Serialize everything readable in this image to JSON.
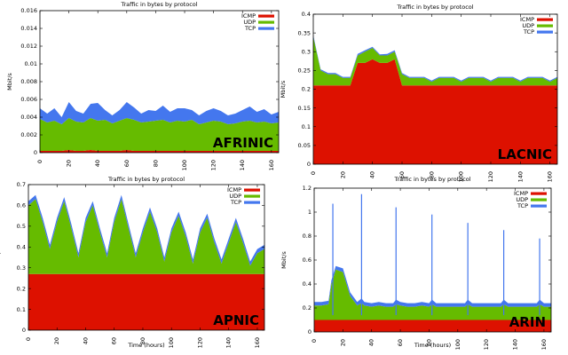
{
  "colors": {
    "icmp": "#dd1100",
    "udp": "#66bb00",
    "tcp": "#4477ee",
    "frame": "#000000"
  },
  "chart_data": [
    {
      "type": "area",
      "title": "Traffic in bytes by protocol",
      "region": "AFRINIC",
      "ylabel": "Mbit/s",
      "xlabel": "",
      "ylim": [
        0,
        0.016
      ],
      "yticks": [
        "0",
        "0.002",
        "0.004",
        "0.006",
        "0.008",
        "0.01",
        "0.012",
        "0.014",
        "0.016"
      ],
      "ytick_values": [
        0,
        0.002,
        0.004,
        0.006,
        0.008,
        0.01,
        0.012,
        0.014,
        0.016
      ],
      "xlim": [
        0,
        165
      ],
      "xticks": [
        "0",
        "20",
        "40",
        "60",
        "80",
        "100",
        "120",
        "140",
        "160"
      ],
      "xtick_values": [
        0,
        20,
        40,
        60,
        80,
        100,
        120,
        140,
        160
      ],
      "legend": [
        "ICMP",
        "UDP",
        "TCP"
      ],
      "legend_position": "top-right",
      "x": [
        0,
        5,
        10,
        15,
        20,
        25,
        30,
        35,
        40,
        45,
        50,
        55,
        60,
        65,
        70,
        75,
        80,
        85,
        90,
        95,
        100,
        105,
        110,
        115,
        120,
        125,
        130,
        135,
        140,
        145,
        150,
        155,
        160,
        165
      ],
      "series": [
        {
          "name": "ICMP",
          "values": [
            0.0002,
            0.0002,
            0.0002,
            0.0002,
            0.0003,
            0.0002,
            0.0002,
            0.0003,
            0.0002,
            0.0002,
            0.0002,
            0.0002,
            0.0003,
            0.0002,
            0.0002,
            0.0002,
            0.0002,
            0.0002,
            0.0002,
            0.0002,
            0.0002,
            0.0002,
            0.0002,
            0.0002,
            0.0002,
            0.0002,
            0.0002,
            0.0002,
            0.0002,
            0.0002,
            0.0002,
            0.0002,
            0.0002,
            0.0002
          ]
        },
        {
          "name": "UDP",
          "values": [
            0.0036,
            0.0032,
            0.0034,
            0.003,
            0.0036,
            0.0033,
            0.0032,
            0.0036,
            0.0034,
            0.0035,
            0.0031,
            0.0034,
            0.0036,
            0.0035,
            0.0032,
            0.0033,
            0.0034,
            0.0035,
            0.0032,
            0.0034,
            0.0033,
            0.0035,
            0.003,
            0.0032,
            0.0034,
            0.0033,
            0.003,
            0.0031,
            0.0033,
            0.0034,
            0.0032,
            0.0033,
            0.0031,
            0.0032
          ]
        },
        {
          "name": "TCP",
          "values": [
            0.0012,
            0.001,
            0.0014,
            0.0008,
            0.0018,
            0.0012,
            0.001,
            0.0016,
            0.002,
            0.0011,
            0.0009,
            0.0012,
            0.0018,
            0.0014,
            0.001,
            0.0013,
            0.0011,
            0.0016,
            0.0012,
            0.0014,
            0.0015,
            0.0011,
            0.001,
            0.0013,
            0.0014,
            0.0012,
            0.001,
            0.0011,
            0.0013,
            0.0016,
            0.0012,
            0.0014,
            0.001,
            0.0012
          ]
        }
      ]
    },
    {
      "type": "area",
      "title": "Traffic in bytes by protocol",
      "region": "LACNIC",
      "ylabel": "Mbit/s",
      "xlabel": "",
      "ylim": [
        0,
        0.4
      ],
      "yticks": [
        "0",
        "0.05",
        "0.1",
        "0.15",
        "0.2",
        "0.25",
        "0.3",
        "0.35",
        "0.4"
      ],
      "ytick_values": [
        0,
        0.05,
        0.1,
        0.15,
        0.2,
        0.25,
        0.3,
        0.35,
        0.4
      ],
      "xlim": [
        0,
        165
      ],
      "xticks": [
        "0",
        "20",
        "40",
        "60",
        "80",
        "100",
        "120",
        "140",
        "160"
      ],
      "xtick_values": [
        0,
        20,
        40,
        60,
        80,
        100,
        120,
        140,
        160
      ],
      "legend": [
        "ICMP",
        "UDP",
        "TCP"
      ],
      "legend_position": "top-right",
      "x": [
        0,
        5,
        10,
        15,
        20,
        25,
        30,
        35,
        40,
        45,
        50,
        55,
        60,
        65,
        70,
        75,
        80,
        85,
        90,
        95,
        100,
        105,
        110,
        115,
        120,
        125,
        130,
        135,
        140,
        145,
        150,
        155,
        160,
        165
      ],
      "series": [
        {
          "name": "ICMP",
          "values": [
            0.21,
            0.21,
            0.21,
            0.21,
            0.21,
            0.21,
            0.27,
            0.27,
            0.28,
            0.27,
            0.27,
            0.28,
            0.21,
            0.21,
            0.21,
            0.21,
            0.21,
            0.21,
            0.21,
            0.21,
            0.21,
            0.21,
            0.21,
            0.21,
            0.21,
            0.21,
            0.21,
            0.21,
            0.21,
            0.21,
            0.21,
            0.21,
            0.21,
            0.21
          ]
        },
        {
          "name": "UDP",
          "values": [
            0.13,
            0.04,
            0.03,
            0.03,
            0.02,
            0.02,
            0.02,
            0.03,
            0.03,
            0.02,
            0.02,
            0.02,
            0.03,
            0.02,
            0.02,
            0.02,
            0.01,
            0.02,
            0.02,
            0.02,
            0.01,
            0.02,
            0.02,
            0.02,
            0.01,
            0.02,
            0.02,
            0.02,
            0.01,
            0.02,
            0.02,
            0.02,
            0.01,
            0.02
          ]
        },
        {
          "name": "TCP",
          "values": [
            0.004,
            0.003,
            0.003,
            0.003,
            0.003,
            0.003,
            0.004,
            0.004,
            0.003,
            0.003,
            0.004,
            0.004,
            0.003,
            0.003,
            0.003,
            0.003,
            0.003,
            0.003,
            0.003,
            0.003,
            0.003,
            0.003,
            0.003,
            0.003,
            0.003,
            0.003,
            0.003,
            0.003,
            0.003,
            0.003,
            0.003,
            0.003,
            0.003,
            0.003
          ]
        }
      ]
    },
    {
      "type": "area",
      "title": "Traffic in bytes by protocol",
      "region": "APNIC",
      "ylabel": "Mbit/s",
      "xlabel": "Time (hours)",
      "ylim": [
        0,
        0.7
      ],
      "yticks": [
        "0",
        "0.1",
        "0.2",
        "0.3",
        "0.4",
        "0.5",
        "0.6",
        "0.7"
      ],
      "ytick_values": [
        0,
        0.1,
        0.2,
        0.3,
        0.4,
        0.5,
        0.6,
        0.7
      ],
      "xlim": [
        0,
        165
      ],
      "xticks": [
        "0",
        "20",
        "40",
        "60",
        "80",
        "100",
        "120",
        "140",
        "160"
      ],
      "xtick_values": [
        0,
        20,
        40,
        60,
        80,
        100,
        120,
        140,
        160
      ],
      "legend": [
        "ICMP",
        "UDP",
        "TCP"
      ],
      "legend_position": "top-right",
      "x": [
        0,
        5,
        10,
        15,
        20,
        25,
        30,
        35,
        40,
        45,
        50,
        55,
        60,
        65,
        70,
        75,
        80,
        85,
        90,
        95,
        100,
        105,
        110,
        115,
        120,
        125,
        130,
        135,
        140,
        145,
        150,
        155,
        160,
        165
      ],
      "series": [
        {
          "name": "ICMP",
          "values": [
            0.27,
            0.27,
            0.27,
            0.27,
            0.27,
            0.27,
            0.27,
            0.27,
            0.27,
            0.27,
            0.27,
            0.27,
            0.27,
            0.27,
            0.27,
            0.27,
            0.27,
            0.27,
            0.27,
            0.27,
            0.27,
            0.27,
            0.27,
            0.27,
            0.27,
            0.27,
            0.27,
            0.27,
            0.27,
            0.27,
            0.27,
            0.27,
            0.27,
            0.27
          ]
        },
        {
          "name": "UDP",
          "values": [
            0.33,
            0.36,
            0.25,
            0.12,
            0.25,
            0.35,
            0.22,
            0.08,
            0.25,
            0.33,
            0.2,
            0.08,
            0.25,
            0.36,
            0.22,
            0.08,
            0.2,
            0.3,
            0.2,
            0.06,
            0.2,
            0.28,
            0.18,
            0.05,
            0.2,
            0.27,
            0.15,
            0.05,
            0.15,
            0.25,
            0.15,
            0.04,
            0.1,
            0.12
          ]
        },
        {
          "name": "TCP",
          "values": [
            0.02,
            0.02,
            0.02,
            0.02,
            0.02,
            0.02,
            0.02,
            0.02,
            0.02,
            0.02,
            0.02,
            0.02,
            0.02,
            0.02,
            0.02,
            0.02,
            0.02,
            0.02,
            0.02,
            0.02,
            0.02,
            0.02,
            0.02,
            0.02,
            0.02,
            0.02,
            0.02,
            0.02,
            0.02,
            0.02,
            0.02,
            0.02,
            0.02,
            0.02
          ]
        }
      ]
    },
    {
      "type": "area",
      "title": "Traffic in bytes by protocol",
      "region": "ARIN",
      "ylabel": "Mbit/s",
      "xlabel": "Time (hours)",
      "ylim": [
        0,
        1.2
      ],
      "yticks": [
        "0",
        "0.2",
        "0.4",
        "0.6",
        "0.8",
        "1",
        "1.2"
      ],
      "ytick_values": [
        0,
        0.2,
        0.4,
        0.6,
        0.8,
        1,
        1.2
      ],
      "xlim": [
        0,
        165
      ],
      "xticks": [
        "0",
        "20",
        "40",
        "60",
        "80",
        "100",
        "120",
        "140",
        "160"
      ],
      "xtick_values": [
        0,
        20,
        40,
        60,
        80,
        100,
        120,
        140,
        160
      ],
      "legend": [
        "ICMP",
        "UDP",
        "TCP"
      ],
      "legend_position": "top-right",
      "x": [
        0,
        5,
        10,
        12,
        15,
        20,
        25,
        30,
        33,
        35,
        40,
        45,
        50,
        55,
        57,
        60,
        65,
        70,
        75,
        80,
        82,
        85,
        90,
        95,
        100,
        105,
        107,
        110,
        115,
        120,
        125,
        130,
        132,
        135,
        140,
        145,
        150,
        155,
        157,
        160,
        165
      ],
      "series": [
        {
          "name": "ICMP",
          "values": [
            0.1,
            0.1,
            0.1,
            0.1,
            0.1,
            0.1,
            0.1,
            0.1,
            0.1,
            0.1,
            0.1,
            0.1,
            0.1,
            0.1,
            0.1,
            0.1,
            0.1,
            0.1,
            0.1,
            0.1,
            0.1,
            0.1,
            0.1,
            0.1,
            0.1,
            0.1,
            0.1,
            0.1,
            0.1,
            0.1,
            0.1,
            0.1,
            0.1,
            0.1,
            0.1,
            0.1,
            0.1,
            0.1,
            0.1,
            0.1,
            0.1
          ]
        },
        {
          "name": "UDP",
          "values": [
            0.12,
            0.12,
            0.13,
            0.3,
            0.42,
            0.4,
            0.2,
            0.12,
            0.14,
            0.12,
            0.11,
            0.12,
            0.11,
            0.11,
            0.13,
            0.12,
            0.11,
            0.11,
            0.12,
            0.11,
            0.13,
            0.11,
            0.11,
            0.11,
            0.11,
            0.11,
            0.13,
            0.11,
            0.11,
            0.11,
            0.11,
            0.11,
            0.13,
            0.11,
            0.11,
            0.11,
            0.11,
            0.11,
            0.13,
            0.11,
            0.11
          ]
        },
        {
          "name": "TCP",
          "values": [
            0.03,
            0.03,
            0.03,
            0.03,
            0.03,
            0.03,
            0.03,
            0.03,
            0.04,
            0.03,
            0.03,
            0.03,
            0.03,
            0.03,
            0.04,
            0.03,
            0.03,
            0.03,
            0.03,
            0.03,
            0.04,
            0.03,
            0.03,
            0.03,
            0.03,
            0.03,
            0.04,
            0.03,
            0.03,
            0.03,
            0.03,
            0.03,
            0.04,
            0.03,
            0.03,
            0.03,
            0.03,
            0.03,
            0.04,
            0.03,
            0.03
          ]
        }
      ],
      "spikes": [
        {
          "x": 13,
          "y": 1.07
        },
        {
          "x": 33,
          "y": 1.15
        },
        {
          "x": 57,
          "y": 1.04
        },
        {
          "x": 82,
          "y": 0.98
        },
        {
          "x": 107,
          "y": 0.91
        },
        {
          "x": 132,
          "y": 0.85
        },
        {
          "x": 157,
          "y": 0.78
        }
      ]
    }
  ]
}
